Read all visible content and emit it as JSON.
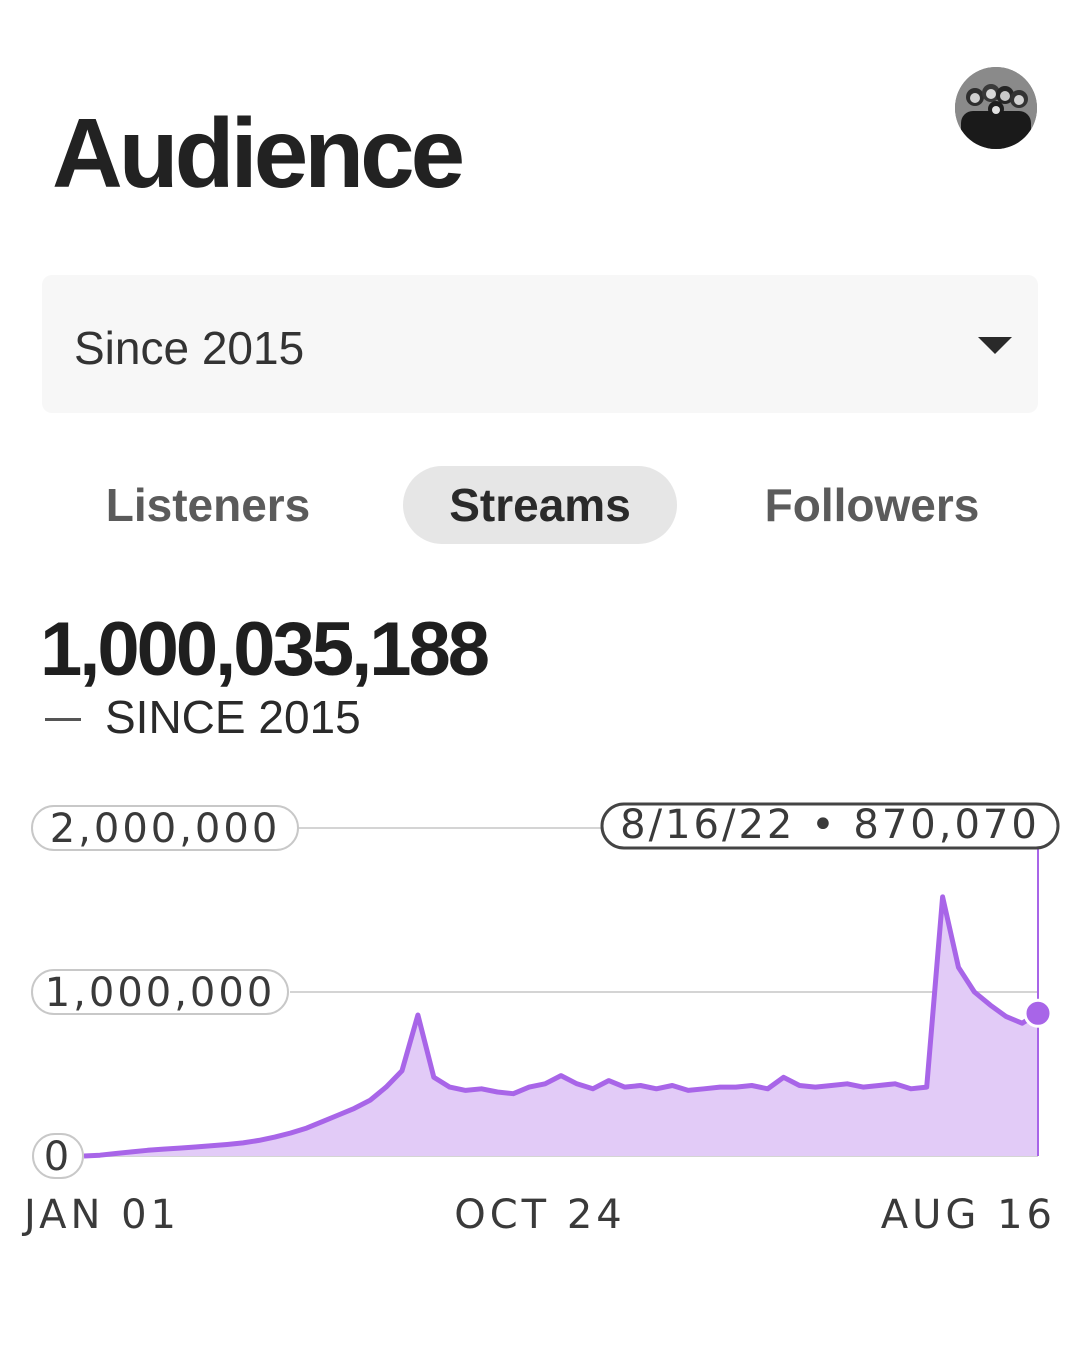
{
  "header": {
    "title": "Audience"
  },
  "range_select": {
    "selected": "Since 2015"
  },
  "tabs": [
    {
      "label": "Listeners",
      "active": false
    },
    {
      "label": "Streams",
      "active": true
    },
    {
      "label": "Followers",
      "active": false
    }
  ],
  "summary": {
    "total": "1,000,035,188",
    "legend_label": "SINCE 2015"
  },
  "colors": {
    "accent": "#a865e8",
    "fill": "#e2cbf7"
  },
  "chart_data": {
    "type": "area",
    "title": "",
    "xlabel": "",
    "ylabel": "",
    "ylim": [
      0,
      2000000
    ],
    "y_ticks": [
      {
        "value": 2000000,
        "label": "2,000,000"
      },
      {
        "value": 1000000,
        "label": "1,000,000"
      },
      {
        "value": 0,
        "label": "0"
      }
    ],
    "x_ticks": [
      {
        "frac": 0.0,
        "label": "JAN 01"
      },
      {
        "frac": 0.5,
        "label": "OCT 24"
      },
      {
        "frac": 1.0,
        "label": "AUG 16"
      }
    ],
    "grid": true,
    "tooltip": {
      "label": "8/16/22 • 870,070",
      "value": 870070
    },
    "series": [
      {
        "values": [
          0,
          5000,
          15000,
          25000,
          35000,
          42000,
          48000,
          55000,
          62000,
          70000,
          80000,
          95000,
          115000,
          140000,
          170000,
          210000,
          250000,
          290000,
          340000,
          420000,
          520000,
          860000,
          480000,
          420000,
          400000,
          410000,
          390000,
          380000,
          420000,
          440000,
          490000,
          440000,
          410000,
          460000,
          420000,
          430000,
          410000,
          430000,
          400000,
          410000,
          420000,
          420000,
          430000,
          410000,
          480000,
          430000,
          420000,
          430000,
          440000,
          420000,
          430000,
          440000,
          410000,
          420000,
          1580000,
          1150000,
          1000000,
          920000,
          850000,
          810000,
          870070
        ]
      }
    ]
  }
}
